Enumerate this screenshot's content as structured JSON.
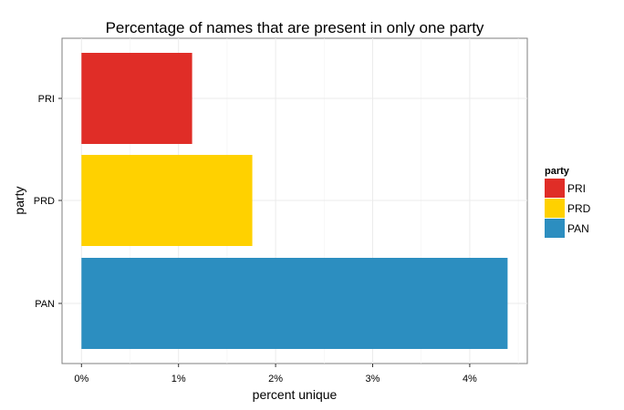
{
  "chart_data": {
    "type": "bar",
    "orientation": "horizontal",
    "title": "Percentage of names that are present in only one party",
    "xlabel": "percent unique",
    "ylabel": "party",
    "categories": [
      "PRI",
      "PRD",
      "PAN"
    ],
    "values": [
      1.14,
      1.76,
      4.39
    ],
    "colors": [
      "#E02D27",
      "#FFD100",
      "#2C8EC0"
    ],
    "xlim": [
      -0.2,
      4.6
    ],
    "xticks": [
      0,
      1,
      2,
      3,
      4
    ],
    "xtick_labels": [
      "0%",
      "1%",
      "2%",
      "3%",
      "4%"
    ],
    "grid": true,
    "legend": {
      "title": "party",
      "placement": "right",
      "entries": [
        "PRI",
        "PRD",
        "PAN"
      ]
    }
  }
}
